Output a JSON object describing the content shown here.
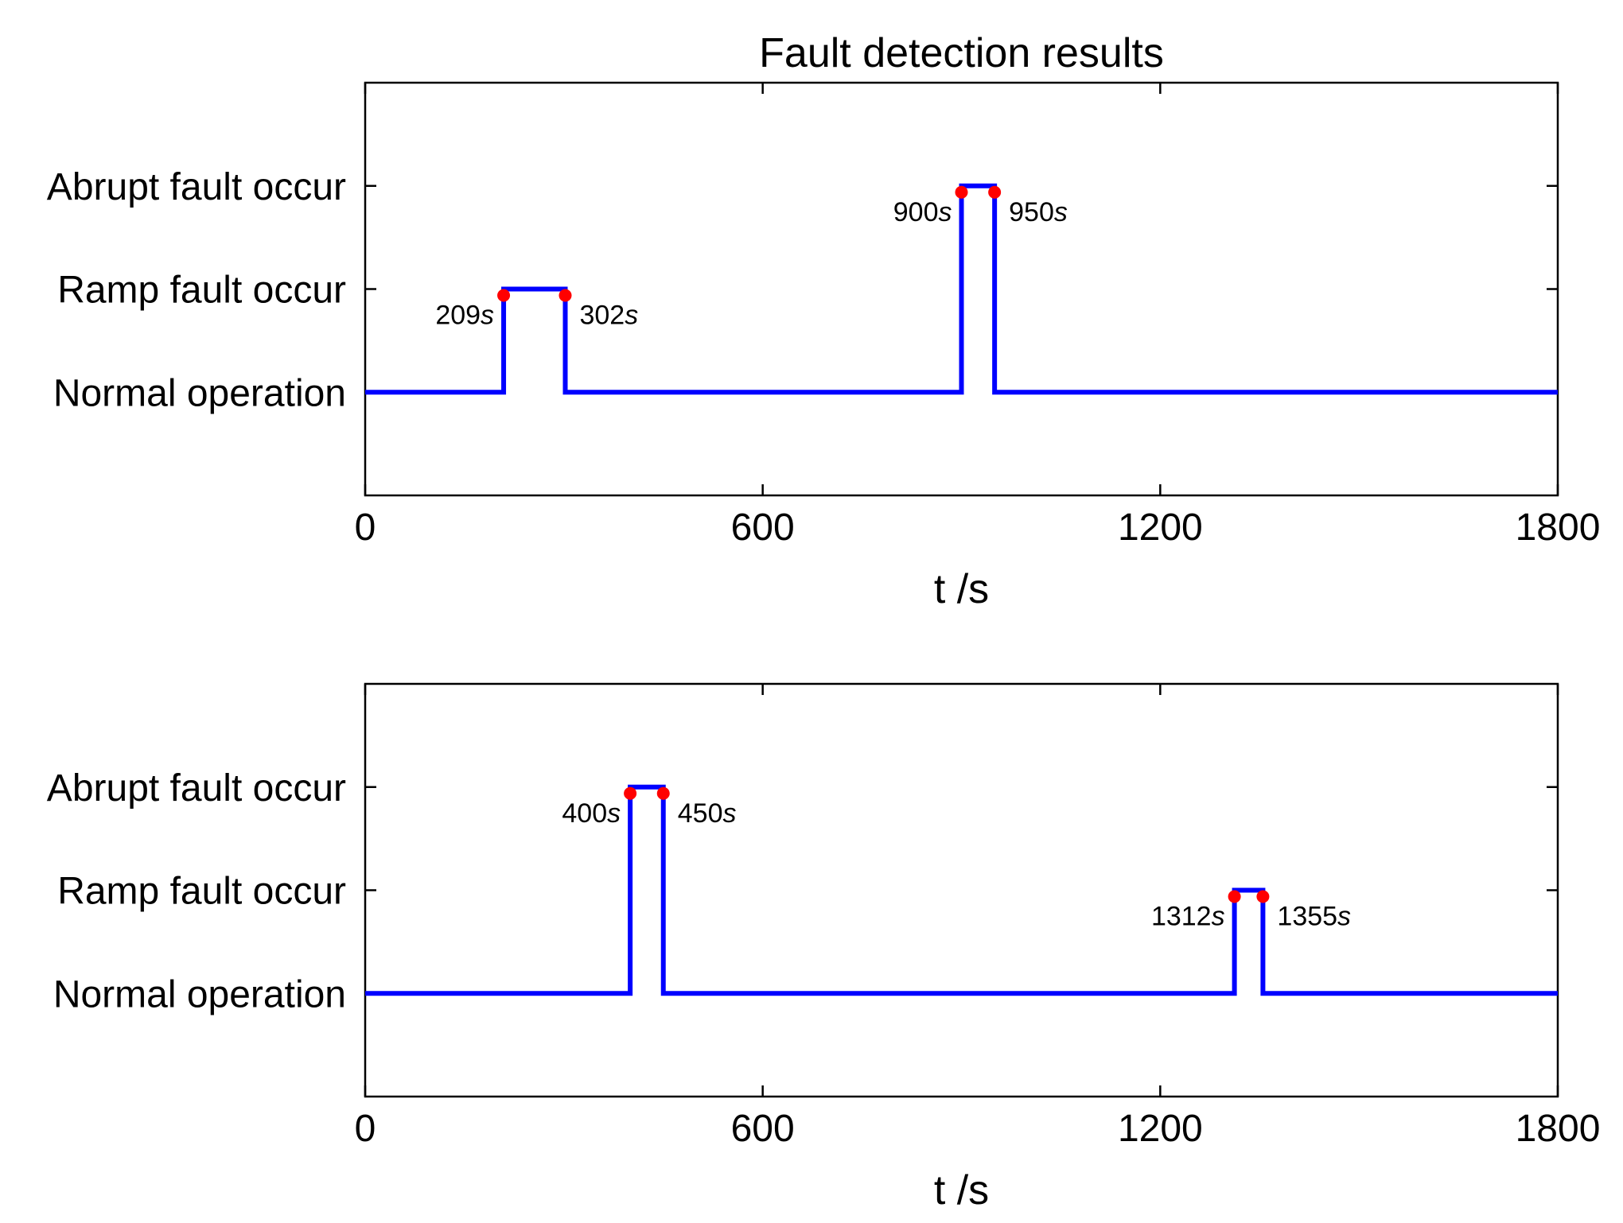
{
  "chart_data": [
    {
      "type": "line",
      "title": "Fault detection results",
      "xlabel": "t /s",
      "xlim": [
        0,
        1800
      ],
      "xticks": [
        0,
        600,
        1200,
        1800
      ],
      "ylim": [
        -1,
        3
      ],
      "ytick_labels": [
        "Normal operation",
        "Ramp fault occur",
        "Abrupt fault occur"
      ],
      "ytick_values": [
        0,
        1,
        2
      ],
      "color": "#0000ff",
      "marker_color": "#ff0000",
      "series": [
        {
          "x": [
            0,
            209,
            209,
            302,
            302,
            900,
            900,
            950,
            950,
            1800
          ],
          "y": [
            0,
            0,
            1,
            1,
            0,
            0,
            2,
            2,
            0,
            0
          ]
        }
      ],
      "annotations": [
        {
          "x": 209,
          "y": 1,
          "value": "209",
          "unit": "s",
          "side": "left"
        },
        {
          "x": 302,
          "y": 1,
          "value": "302",
          "unit": "s",
          "side": "right"
        },
        {
          "x": 900,
          "y": 2,
          "value": "900",
          "unit": "s",
          "side": "left"
        },
        {
          "x": 950,
          "y": 2,
          "value": "950",
          "unit": "s",
          "side": "right"
        }
      ]
    },
    {
      "type": "line",
      "title": "",
      "xlabel": "t /s",
      "xlim": [
        0,
        1800
      ],
      "xticks": [
        0,
        600,
        1200,
        1800
      ],
      "ylim": [
        -1,
        3
      ],
      "ytick_labels": [
        "Normal operation",
        "Ramp fault occur",
        "Abrupt fault occur"
      ],
      "ytick_values": [
        0,
        1,
        2
      ],
      "color": "#0000ff",
      "marker_color": "#ff0000",
      "series": [
        {
          "x": [
            0,
            400,
            400,
            450,
            450,
            1312,
            1312,
            1355,
            1355,
            1800
          ],
          "y": [
            0,
            0,
            2,
            2,
            0,
            0,
            1,
            1,
            0,
            0
          ]
        }
      ],
      "annotations": [
        {
          "x": 400,
          "y": 2,
          "value": "400",
          "unit": "s",
          "side": "left"
        },
        {
          "x": 450,
          "y": 2,
          "value": "450",
          "unit": "s",
          "side": "right"
        },
        {
          "x": 1312,
          "y": 1,
          "value": "1312",
          "unit": "s",
          "side": "left"
        },
        {
          "x": 1355,
          "y": 1,
          "value": "1355",
          "unit": "s",
          "side": "right"
        }
      ]
    }
  ]
}
